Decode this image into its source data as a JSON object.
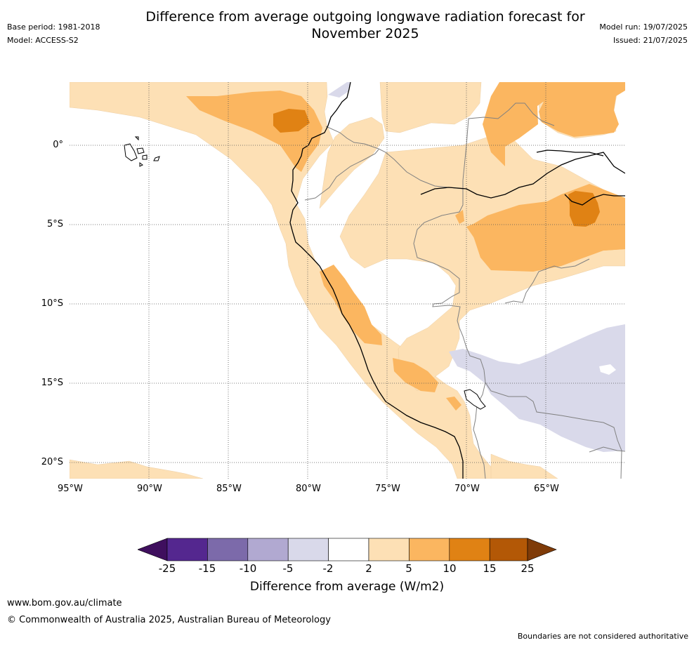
{
  "header": {
    "title_line1": "Difference from average outgoing longwave radiation forecast for",
    "title_line2": "November 2025",
    "base_period": "Base period: 1981-2018",
    "model": "Model: ACCESS-S2",
    "model_run": "Model run: 19/07/2025",
    "issued": "Issued: 21/07/2025"
  },
  "map": {
    "lon_ticks": [
      "95°W",
      "90°W",
      "85°W",
      "80°W",
      "75°W",
      "70°W",
      "65°W"
    ],
    "lat_ticks": [
      "0°",
      "5°S",
      "10°S",
      "15°S",
      "20°S"
    ],
    "colors": {
      "neg25": "#3f0f5e",
      "neg15": "#54278f",
      "neg10": "#7c6aaa",
      "neg5": "#b1a9d1",
      "neg2": "#d9d9ea",
      "neutral": "#ffffff",
      "pos2": "#fde0b5",
      "pos5": "#fbb660",
      "pos10": "#e08214",
      "pos15": "#b35806",
      "pos25": "#7f3b08"
    }
  },
  "colorbar": {
    "labels": [
      "-25",
      "-15",
      "-10",
      "-5",
      "-2",
      "2",
      "5",
      "10",
      "15",
      "25"
    ],
    "title": "Difference from average (W/m2)"
  },
  "footer": {
    "url": "www.bom.gov.au/climate",
    "copyright": "© Commonwealth of Australia 2025, Australian Bureau of Meteorology",
    "note": "Boundaries are not considered authoritative"
  }
}
